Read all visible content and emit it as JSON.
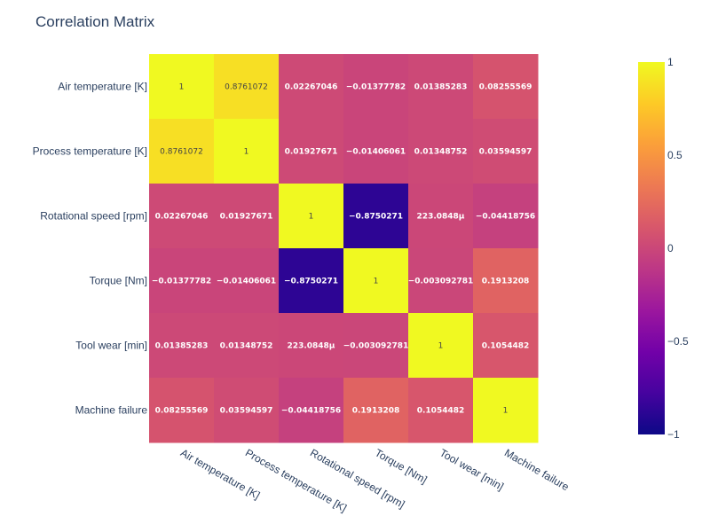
{
  "chart_data": {
    "type": "heatmap",
    "title": "Correlation Matrix",
    "x_labels": [
      "Air temperature [K]",
      "Process temperature [K]",
      "Rotational speed [rpm]",
      "Torque [Nm]",
      "Tool wear [min]",
      "Machine failure"
    ],
    "y_labels": [
      "Air temperature [K]",
      "Process temperature [K]",
      "Rotational speed [rpm]",
      "Torque [Nm]",
      "Tool wear [min]",
      "Machine failure"
    ],
    "values": [
      [
        1,
        0.8761072,
        0.02267046,
        -0.01377782,
        0.01385283,
        0.08255569
      ],
      [
        0.8761072,
        1,
        0.01927671,
        -0.01406061,
        0.01348752,
        0.03594597
      ],
      [
        0.02267046,
        0.01927671,
        1,
        -0.8750271,
        0.0002230848,
        -0.04418756
      ],
      [
        -0.01377782,
        -0.01406061,
        -0.8750271,
        1,
        -0.003092781,
        0.1913208
      ],
      [
        0.01385283,
        0.01348752,
        0.0002230848,
        -0.003092781,
        1,
        0.1054482
      ],
      [
        0.08255569,
        0.03594597,
        -0.04418756,
        0.1913208,
        0.1054482,
        1
      ]
    ],
    "text": [
      [
        "1",
        "0.8761072",
        "0.02267046",
        "−0.01377782",
        "0.01385283",
        "0.08255569"
      ],
      [
        "0.8761072",
        "1",
        "0.01927671",
        "−0.01406061",
        "0.01348752",
        "0.03594597"
      ],
      [
        "0.02267046",
        "0.01927671",
        "1",
        "−0.8750271",
        "223.0848μ",
        "−0.04418756"
      ],
      [
        "−0.01377782",
        "−0.01406061",
        "−0.8750271",
        "1",
        "−0.003092781",
        "0.1913208"
      ],
      [
        "0.01385283",
        "0.01348752",
        "223.0848μ",
        "−0.003092781",
        "1",
        "0.1054482"
      ],
      [
        "0.08255569",
        "0.03594597",
        "−0.04418756",
        "0.1913208",
        "0.1054482",
        "1"
      ]
    ],
    "colorscale": "plasma",
    "zmin": -1,
    "zmax": 1,
    "colorbar_ticks": [
      {
        "value": 1,
        "label": "1"
      },
      {
        "value": 0.5,
        "label": "0.5"
      },
      {
        "value": 0,
        "label": "0"
      },
      {
        "value": -0.5,
        "label": "−0.5"
      },
      {
        "value": -1,
        "label": "−1"
      }
    ]
  }
}
